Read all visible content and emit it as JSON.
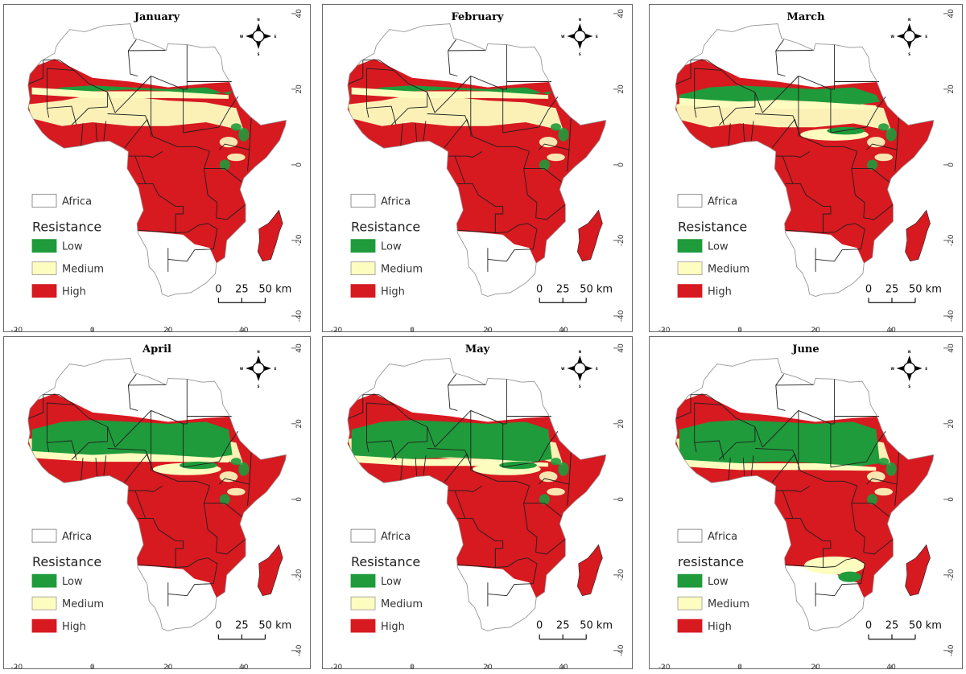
{
  "axes": {
    "x_ticks": [
      "-20",
      "0",
      "20",
      "40"
    ],
    "y_ticks": [
      "40",
      "20",
      "0",
      "-20",
      "-40"
    ]
  },
  "scalebar": {
    "labels": [
      "0",
      "25",
      "50 km"
    ]
  },
  "compass": {
    "n": "N",
    "s": "S",
    "e": "E",
    "w": "W"
  },
  "colors": {
    "low": "#1f9b3b",
    "medium": "#fdfdc0",
    "high": "#d71920",
    "background": "#ffffff",
    "outline": "#9a9a9a",
    "border": "#1f1f1f"
  },
  "panels": [
    {
      "month": "January",
      "legend": {
        "region": "Africa",
        "title": "Resistance",
        "low": "Low",
        "medium": "Medium",
        "high": "High"
      },
      "classes": {
        "low_north": 0.05,
        "medium_north": 0.25,
        "low_equator": 0.03,
        "southern_low": 0.0
      }
    },
    {
      "month": "February",
      "legend": {
        "region": "Africa",
        "title": "Resistance",
        "low": "Low",
        "medium": "Medium",
        "high": "High"
      },
      "classes": {
        "low_north": 0.05,
        "medium_north": 0.25,
        "low_equator": 0.05,
        "southern_low": 0.0
      }
    },
    {
      "month": "March",
      "legend": {
        "region": "Africa",
        "title": "Resistance",
        "low": "Low",
        "medium": "Medium",
        "high": "High"
      },
      "classes": {
        "low_north": 0.3,
        "medium_north": 0.35,
        "low_equator": 0.12,
        "southern_low": 0.0
      }
    },
    {
      "month": "April",
      "legend": {
        "region": "Africa",
        "title": "Resistance",
        "low": "Low",
        "medium": "Medium",
        "high": "High"
      },
      "classes": {
        "low_north": 0.75,
        "medium_north": 0.15,
        "low_equator": 0.1,
        "southern_low": 0.0
      }
    },
    {
      "month": "May",
      "legend": {
        "region": "Africa",
        "title": "Resistance",
        "low": "Low",
        "medium": "Medium",
        "high": "High"
      },
      "classes": {
        "low_north": 0.85,
        "medium_north": 0.1,
        "low_equator": 0.08,
        "southern_low": 0.0
      }
    },
    {
      "month": "June",
      "legend": {
        "region": "Africa",
        "title": "resistance",
        "low": "Low",
        "medium": "Medium",
        "high": "High"
      },
      "classes": {
        "low_north": 0.95,
        "medium_north": 0.05,
        "low_equator": 0.05,
        "southern_low": 0.15
      }
    }
  ]
}
